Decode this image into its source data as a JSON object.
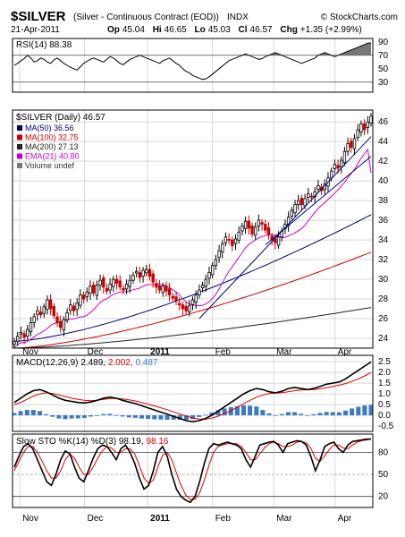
{
  "header": {
    "symbol": "$SILVER",
    "name": "(Silver - Continuous Contract (EOD))",
    "exchange": "INDX",
    "brand": "© StockCharts.com",
    "date": "21-Apr-2011",
    "quote": {
      "op": "45.04",
      "hi": "46.65",
      "lo": "45.03",
      "cl": "46.57",
      "chg": "+1.35 (+2.99%)"
    },
    "quote_labels": {
      "op": "Op",
      "hi": "Hi",
      "lo": "Lo",
      "cl": "Cl",
      "chg": "Chg"
    }
  },
  "chart_data": [
    {
      "type": "line",
      "panel": "rsi",
      "title": "RSI(14) 88.38",
      "y_ticks": [
        30,
        50,
        70,
        90
      ],
      "ylim": [
        15,
        95
      ],
      "guides": [
        30,
        70
      ],
      "series": [
        {
          "name": "RSI(14)",
          "values": [
            55,
            58,
            62,
            65,
            70,
            66,
            60,
            62,
            66,
            64,
            60,
            58,
            63,
            66,
            62,
            58,
            55,
            52,
            50,
            48,
            53,
            58,
            61,
            64,
            66,
            64,
            62,
            60,
            64,
            68,
            66,
            62,
            58,
            56,
            60,
            64,
            66,
            68,
            70,
            68,
            66,
            64,
            62,
            60,
            58,
            62,
            64,
            66,
            62,
            58,
            55,
            50,
            46,
            44,
            40,
            38,
            36,
            34,
            35,
            38,
            42,
            46,
            50,
            54,
            58,
            62,
            64,
            66,
            68,
            70,
            72,
            70,
            68,
            66,
            64,
            65,
            68,
            70,
            72,
            74,
            72,
            70,
            68,
            66,
            64,
            62,
            60,
            58,
            60,
            62,
            64,
            66,
            70,
            72,
            74,
            72,
            70,
            68,
            70,
            72,
            74,
            76,
            78,
            80,
            82,
            84,
            86,
            88,
            88.38
          ]
        }
      ]
    },
    {
      "type": "candlestick",
      "panel": "price",
      "title": "$SILVER (Daily) 46.57",
      "y_ticks": [
        24,
        26,
        28,
        30,
        32,
        34,
        36,
        38,
        40,
        42,
        44,
        46
      ],
      "ylim": [
        23,
        47.2
      ],
      "legend": [
        {
          "label": "MA(50) 36.56",
          "color": "#00007f"
        },
        {
          "label": "MA(100) 32.75",
          "color": "#cc0000"
        },
        {
          "label": "MA(200) 27.13",
          "color": "#222222"
        },
        {
          "label": "EMA(21) 40.80",
          "color": "#cc00cc"
        },
        {
          "label": "Volume undef",
          "color": "#777777"
        }
      ],
      "close": [
        23.7,
        24.2,
        24.6,
        24.1,
        24.9,
        25.6,
        26.2,
        26.8,
        26.4,
        27.2,
        27.9,
        27.0,
        26.3,
        25.6,
        25.1,
        25.9,
        26.6,
        27.4,
        26.8,
        27.6,
        28.4,
        28.0,
        28.7,
        29.3,
        28.6,
        29.4,
        29.9,
        29.2,
        28.8,
        29.5,
        30.0,
        29.6,
        29.2,
        28.9,
        29.5,
        29.9,
        30.4,
        30.8,
        30.2,
        30.9,
        31.0,
        30.3,
        29.7,
        29.2,
        28.9,
        29.3,
        28.8,
        28.4,
        28.1,
        27.8,
        27.4,
        27.0,
        26.8,
        27.3,
        27.9,
        28.4,
        28.9,
        29.4,
        30.0,
        30.7,
        31.4,
        32.0,
        32.9,
        33.6,
        34.3,
        34.0,
        33.4,
        34.1,
        34.8,
        35.4,
        35.9,
        35.2,
        34.6,
        35.3,
        36.0,
        35.6,
        35.0,
        34.5,
        34.0,
        33.7,
        34.3,
        34.9,
        35.6,
        36.3,
        37.0,
        37.6,
        38.0,
        37.6,
        38.2,
        38.7,
        38.4,
        38.9,
        39.5,
        39.0,
        39.7,
        40.3,
        41.0,
        41.7,
        41.3,
        42.1,
        43.0,
        43.8,
        43.4,
        44.3,
        45.2,
        45.8,
        45.2,
        46.0,
        46.57
      ],
      "moving_averages": [
        {
          "name": "MA(50)",
          "color": "#00007f",
          "start": 23.7,
          "end": 36.56
        },
        {
          "name": "MA(100)",
          "color": "#cc0000",
          "start": 23.0,
          "end": 32.75
        },
        {
          "name": "MA(200)",
          "color": "#222222",
          "start": 23.0,
          "end": 27.13
        },
        {
          "name": "EMA(21)",
          "color": "#cc00cc",
          "start": 24.2,
          "end": 40.8
        }
      ]
    },
    {
      "type": "line",
      "panel": "macd",
      "title": "MACD(12,26,9)",
      "values_text": {
        "macd": "2.489,",
        "signal": "2.002,",
        "hist": "0.487"
      },
      "y_ticks": [
        "2.5",
        "2.0",
        "1.5",
        "1.0",
        "0.5",
        "0.0",
        "-0.5"
      ],
      "y_tick_values": [
        2.5,
        2.0,
        1.5,
        1.0,
        0.5,
        0.0,
        -0.5
      ],
      "ylim": [
        -0.75,
        2.8
      ],
      "series": [
        {
          "name": "MACD",
          "color": "#000000",
          "values": [
            0.6,
            0.8,
            1.0,
            1.15,
            1.2,
            1.1,
            0.95,
            0.8,
            0.7,
            0.65,
            0.6,
            0.58,
            0.62,
            0.7,
            0.8,
            0.85,
            0.8,
            0.7,
            0.62,
            0.55,
            0.45,
            0.35,
            0.25,
            0.15,
            0.05,
            -0.05,
            -0.15,
            -0.25,
            -0.3,
            -0.25,
            -0.15,
            0.0,
            0.2,
            0.4,
            0.6,
            0.8,
            1.0,
            1.15,
            1.25,
            1.2,
            1.1,
            1.05,
            1.12,
            1.25,
            1.3,
            1.25,
            1.2,
            1.25,
            1.35,
            1.45,
            1.5,
            1.55,
            1.7,
            1.9,
            2.1,
            2.3,
            2.489
          ]
        },
        {
          "name": "Signal",
          "color": "#dd0000",
          "values": [
            0.5,
            0.6,
            0.75,
            0.9,
            1.0,
            1.05,
            1.02,
            0.95,
            0.88,
            0.8,
            0.74,
            0.7,
            0.68,
            0.7,
            0.74,
            0.78,
            0.79,
            0.76,
            0.72,
            0.67,
            0.6,
            0.52,
            0.44,
            0.35,
            0.26,
            0.16,
            0.06,
            -0.04,
            -0.12,
            -0.17,
            -0.18,
            -0.13,
            -0.04,
            0.08,
            0.22,
            0.38,
            0.54,
            0.7,
            0.84,
            0.95,
            1.01,
            1.04,
            1.06,
            1.1,
            1.15,
            1.18,
            1.19,
            1.2,
            1.24,
            1.29,
            1.35,
            1.41,
            1.48,
            1.58,
            1.7,
            1.84,
            2.002
          ]
        },
        {
          "name": "Histogram",
          "color": "#3a7abf",
          "values": [
            0.1,
            0.2,
            0.25,
            0.25,
            0.2,
            0.05,
            -0.07,
            -0.15,
            -0.18,
            -0.15,
            -0.14,
            -0.12,
            -0.06,
            0.0,
            0.06,
            0.07,
            0.01,
            -0.06,
            -0.1,
            -0.12,
            -0.15,
            -0.17,
            -0.19,
            -0.2,
            -0.21,
            -0.21,
            -0.21,
            -0.21,
            -0.18,
            -0.08,
            0.03,
            0.13,
            0.24,
            0.32,
            0.38,
            0.42,
            0.46,
            0.45,
            0.41,
            0.25,
            0.09,
            0.01,
            0.06,
            0.15,
            0.15,
            0.07,
            0.01,
            0.05,
            0.11,
            0.16,
            0.15,
            0.14,
            0.22,
            0.32,
            0.4,
            0.46,
            0.487
          ]
        }
      ]
    },
    {
      "type": "line",
      "panel": "stochastic",
      "title": "Slow STO %K(14) %D(3)",
      "values_text": {
        "k": "98.19,",
        "d": "98.16"
      },
      "y_ticks": [
        20,
        50,
        80
      ],
      "ylim": [
        5,
        105
      ],
      "guides": [
        20,
        50,
        80
      ],
      "series": [
        {
          "name": "%K(14)",
          "color": "#000000",
          "values": [
            60,
            75,
            88,
            92,
            85,
            70,
            55,
            40,
            35,
            50,
            70,
            82,
            78,
            60,
            45,
            40,
            55,
            72,
            85,
            90,
            88,
            80,
            70,
            85,
            90,
            80,
            65,
            45,
            30,
            35,
            55,
            80,
            88,
            75,
            50,
            30,
            20,
            15,
            12,
            20,
            40,
            65,
            85,
            92,
            90,
            92,
            94,
            92,
            90,
            85,
            70,
            60,
            75,
            90,
            92,
            94,
            95,
            90,
            80,
            92,
            94,
            96,
            95,
            90,
            75,
            55,
            70,
            88,
            92,
            94,
            85,
            80,
            90,
            95,
            96,
            97,
            98,
            98.19
          ]
        },
        {
          "name": "%D(3)",
          "color": "#dd0000",
          "values": [
            55,
            68,
            80,
            88,
            88,
            80,
            68,
            55,
            45,
            45,
            55,
            70,
            78,
            72,
            60,
            50,
            50,
            60,
            72,
            82,
            88,
            86,
            80,
            80,
            85,
            85,
            78,
            62,
            45,
            38,
            42,
            60,
            76,
            80,
            70,
            52,
            35,
            22,
            16,
            16,
            25,
            42,
            62,
            80,
            88,
            90,
            92,
            92,
            92,
            88,
            80,
            70,
            70,
            78,
            86,
            92,
            94,
            92,
            88,
            88,
            90,
            94,
            95,
            93,
            86,
            72,
            68,
            75,
            84,
            90,
            90,
            86,
            85,
            90,
            94,
            96,
            97,
            98.16
          ]
        }
      ]
    }
  ],
  "x_axis": {
    "labels": [
      {
        "text": "Nov",
        "bold": false,
        "frac": 0.03
      },
      {
        "text": "Dec",
        "bold": false,
        "frac": 0.21
      },
      {
        "text": "2011",
        "bold": true,
        "frac": 0.385
      },
      {
        "text": "Feb",
        "bold": false,
        "frac": 0.565
      },
      {
        "text": "Mar",
        "bold": false,
        "frac": 0.735
      },
      {
        "text": "Apr",
        "bold": false,
        "frac": 0.905
      }
    ]
  },
  "colors": {
    "grid": "#d8d8d8",
    "up": "#000000",
    "down": "#cc0000",
    "panel_border": "#000000",
    "rsi_fill": "#777777"
  }
}
